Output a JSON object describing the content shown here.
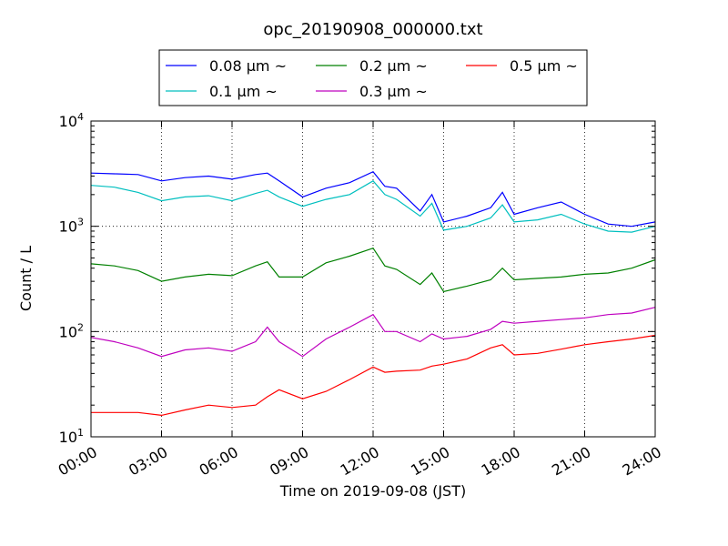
{
  "chart_data": {
    "type": "line",
    "title": "opc_20190908_000000.txt",
    "xlabel": "Time on 2019-09-08 (JST)",
    "ylabel": "Count / L",
    "x_unit": "hour of day",
    "xlim": [
      0,
      24
    ],
    "ylim": [
      10,
      10000
    ],
    "y_scale": "log",
    "grid": "dotted",
    "legend_position": "top-center, above plot",
    "x_ticks": [
      0,
      3,
      6,
      9,
      12,
      15,
      18,
      21,
      24
    ],
    "x_tick_labels": [
      "00:00",
      "03:00",
      "06:00",
      "09:00",
      "12:00",
      "15:00",
      "18:00",
      "21:00",
      "24:00"
    ],
    "y_ticks": [
      10,
      100,
      1000,
      10000
    ],
    "y_tick_labels": [
      {
        "base": "10",
        "exp": "1"
      },
      {
        "base": "10",
        "exp": "2"
      },
      {
        "base": "10",
        "exp": "3"
      },
      {
        "base": "10",
        "exp": "4"
      }
    ],
    "x": [
      0,
      1,
      2,
      3,
      4,
      5,
      6,
      7,
      7.5,
      8,
      9,
      10,
      11,
      12,
      12.5,
      13,
      14,
      14.5,
      15,
      16,
      17,
      17.5,
      18,
      19,
      20,
      21,
      22,
      23,
      24
    ],
    "series": [
      {
        "name": "0.08 μm ~",
        "color": "#0000ff",
        "values": [
          3200,
          3150,
          3100,
          2700,
          2900,
          3000,
          2800,
          3100,
          3200,
          2700,
          1900,
          2300,
          2600,
          3300,
          2400,
          2300,
          1400,
          2000,
          1100,
          1250,
          1500,
          2100,
          1300,
          1500,
          1700,
          1300,
          1050,
          1000,
          1100
        ]
      },
      {
        "name": "0.1 μm ~",
        "color": "#00bfbf",
        "values": [
          2450,
          2350,
          2100,
          1750,
          1900,
          1950,
          1750,
          2050,
          2200,
          1900,
          1550,
          1800,
          2000,
          2700,
          2000,
          1800,
          1250,
          1650,
          920,
          1000,
          1200,
          1600,
          1100,
          1150,
          1300,
          1050,
          900,
          880,
          1000
        ]
      },
      {
        "name": "0.2 μm ~",
        "color": "#008000",
        "values": [
          440,
          420,
          380,
          300,
          330,
          350,
          340,
          420,
          460,
          330,
          330,
          450,
          520,
          620,
          420,
          390,
          280,
          360,
          240,
          270,
          310,
          400,
          310,
          320,
          330,
          350,
          360,
          400,
          480
        ]
      },
      {
        "name": "0.3 μm ~",
        "color": "#bf00bf",
        "values": [
          88,
          80,
          70,
          58,
          67,
          70,
          65,
          80,
          110,
          80,
          58,
          85,
          110,
          145,
          100,
          100,
          80,
          95,
          85,
          90,
          105,
          125,
          120,
          125,
          130,
          135,
          145,
          150,
          170
        ]
      },
      {
        "name": "0.5 μm ~",
        "color": "#ff0000",
        "values": [
          17,
          17,
          17,
          16,
          18,
          20,
          19,
          20,
          24,
          28,
          23,
          27,
          35,
          46,
          41,
          42,
          43,
          47,
          49,
          55,
          70,
          75,
          60,
          62,
          68,
          75,
          80,
          85,
          92
        ]
      }
    ]
  }
}
